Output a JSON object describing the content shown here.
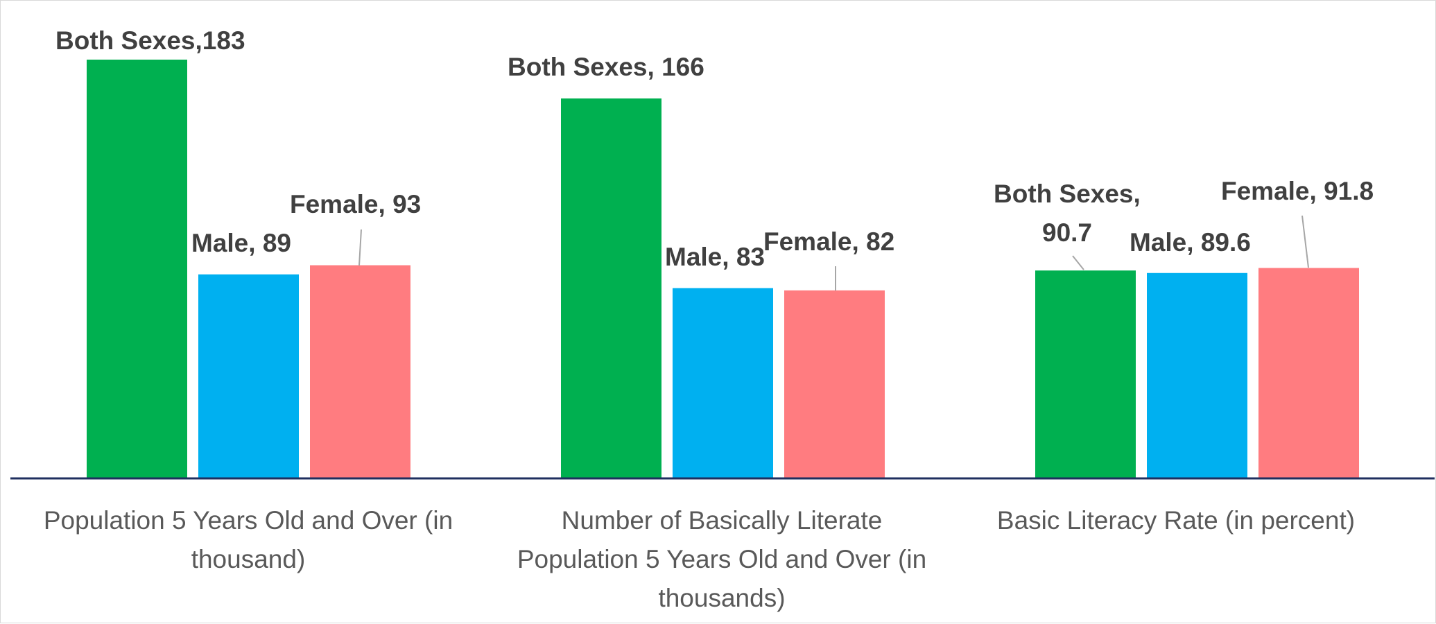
{
  "chart_data": {
    "type": "bar",
    "categories": [
      "Population 5 Years Old and Over (in thousand)",
      "Number of Basically Literate Population 5 Years Old and Over (in thousands)",
      "Basic Literacy Rate (in percent)"
    ],
    "category_lines": [
      [
        "Population 5 Years Old and Over (in",
        "thousand)"
      ],
      [
        "Number of Basically Literate",
        "Population 5 Years Old and Over (in",
        "thousands)"
      ],
      [
        "Basic Literacy Rate (in percent)"
      ]
    ],
    "series": [
      {
        "name": "Both Sexes",
        "color": "#00b050",
        "values": [
          183,
          166,
          90.7
        ]
      },
      {
        "name": "Male",
        "color": "#00b0f0",
        "values": [
          89,
          83,
          89.6
        ]
      },
      {
        "name": "Female",
        "color": "#ff7c80",
        "values": [
          93,
          82,
          91.8
        ]
      }
    ],
    "data_labels": [
      [
        [
          "Both Sexes,183"
        ],
        [
          "Male, 89"
        ],
        [
          "Female, 93"
        ]
      ],
      [
        [
          "Both Sexes, 166"
        ],
        [
          "Male, 83"
        ],
        [
          "Female, 82"
        ]
      ],
      [
        [
          "Both Sexes,",
          "90.7"
        ],
        [
          "Male, 89.6"
        ],
        [
          "Female, 91.8"
        ]
      ]
    ],
    "ylim": [
      0,
      200
    ],
    "legend": "none",
    "grid": false,
    "title": "",
    "xlabel": "",
    "ylabel": ""
  }
}
